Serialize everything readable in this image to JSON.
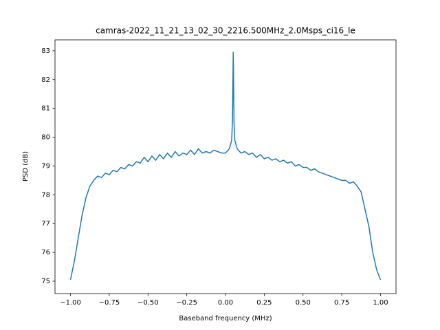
{
  "chart_data": {
    "type": "line",
    "title": "camras-2022_11_21_13_02_30_2216.500MHz_2.0Msps_ci16_le",
    "x_label": "Baseband frequency (MHz)",
    "y_label": "PSD (dB)",
    "x": [
      -1,
      -0.975,
      -0.95,
      -0.925,
      -0.9,
      -0.875,
      -0.85,
      -0.825,
      -0.8,
      -0.775,
      -0.75,
      -0.725,
      -0.7,
      -0.675,
      -0.65,
      -0.625,
      -0.6,
      -0.575,
      -0.55,
      -0.525,
      -0.5,
      -0.475,
      -0.45,
      -0.425,
      -0.4,
      -0.375,
      -0.35,
      -0.325,
      -0.3,
      -0.275,
      -0.25,
      -0.225,
      -0.2,
      -0.175,
      -0.15,
      -0.125,
      -0.1,
      -0.075,
      -0.05,
      -0.025,
      0,
      0.025,
      0.04,
      0.045,
      0.05,
      0.055,
      0.06,
      0.075,
      0.1,
      0.125,
      0.15,
      0.175,
      0.2,
      0.225,
      0.25,
      0.275,
      0.3,
      0.325,
      0.35,
      0.375,
      0.4,
      0.425,
      0.45,
      0.475,
      0.5,
      0.525,
      0.55,
      0.575,
      0.6,
      0.625,
      0.65,
      0.675,
      0.7,
      0.725,
      0.75,
      0.775,
      0.8,
      0.825,
      0.85,
      0.875,
      0.9,
      0.925,
      0.95,
      0.975,
      1
    ],
    "series": [
      {
        "color": "#1f77b4",
        "values": [
          75.05,
          75.7,
          76.5,
          77.3,
          77.9,
          78.3,
          78.5,
          78.65,
          78.6,
          78.75,
          78.7,
          78.85,
          78.8,
          78.95,
          78.9,
          79.05,
          79.0,
          79.15,
          79.1,
          79.3,
          79.15,
          79.35,
          79.2,
          79.4,
          79.25,
          79.45,
          79.3,
          79.5,
          79.35,
          79.45,
          79.4,
          79.55,
          79.4,
          79.6,
          79.45,
          79.5,
          79.45,
          79.55,
          79.5,
          79.45,
          79.45,
          79.6,
          79.9,
          80.6,
          82.95,
          80.5,
          79.9,
          79.6,
          79.45,
          79.5,
          79.4,
          79.45,
          79.3,
          79.4,
          79.25,
          79.3,
          79.2,
          79.25,
          79.15,
          79.2,
          79.1,
          79.15,
          79.0,
          79.05,
          78.95,
          78.95,
          78.85,
          78.9,
          78.8,
          78.75,
          78.7,
          78.65,
          78.6,
          78.55,
          78.5,
          78.5,
          78.4,
          78.45,
          78.3,
          78.1,
          77.5,
          76.9,
          76.0,
          75.4,
          75.05
        ]
      }
    ],
    "xlim": [
      -1.1,
      1.1
    ],
    "ylim": [
      74.57,
      83.38
    ],
    "xticks": [
      {
        "value": -1,
        "label": "−1.00"
      },
      {
        "value": -0.75,
        "label": "−0.75"
      },
      {
        "value": -0.5,
        "label": "−0.50"
      },
      {
        "value": -0.25,
        "label": "−0.25"
      },
      {
        "value": 0,
        "label": "0.00"
      },
      {
        "value": 0.25,
        "label": "0.25"
      },
      {
        "value": 0.5,
        "label": "0.50"
      },
      {
        "value": 0.75,
        "label": "0.75"
      },
      {
        "value": 1,
        "label": "1.00"
      }
    ],
    "yticks": [
      75,
      76,
      77,
      78,
      79,
      80,
      81,
      82,
      83
    ],
    "grid": false
  }
}
